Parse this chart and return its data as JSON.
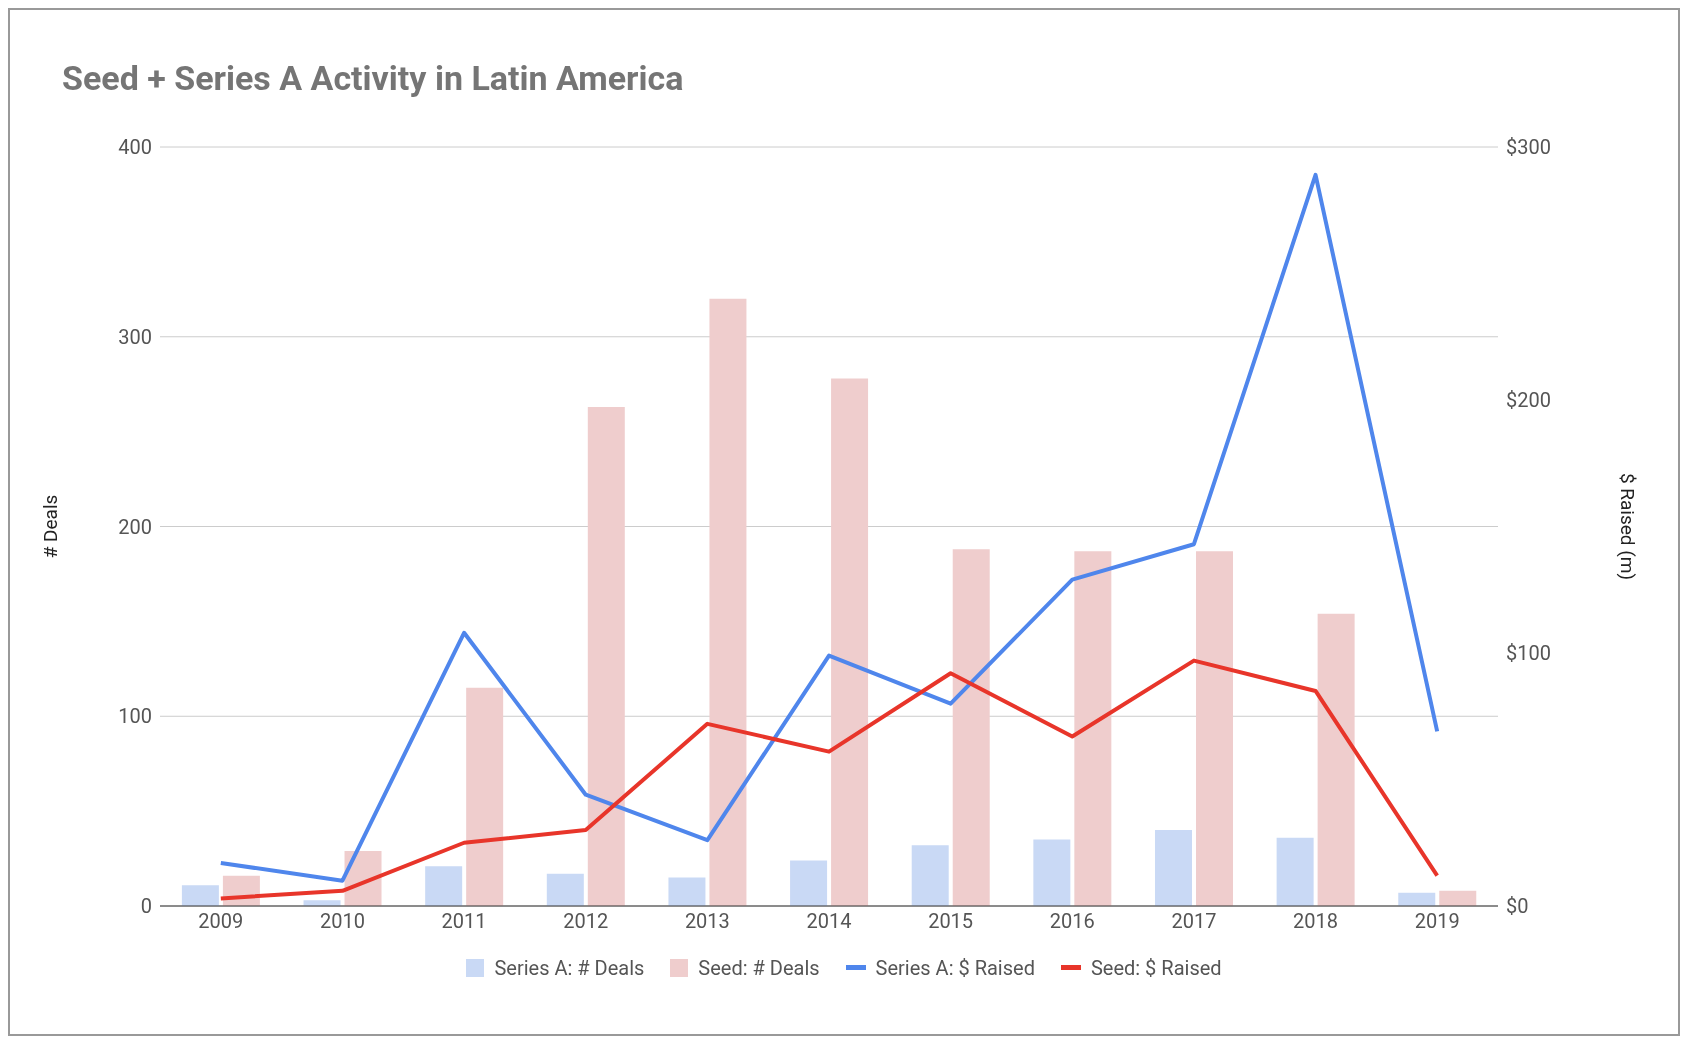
{
  "chart_data": {
    "type": "bar",
    "title": "Seed + Series A Activity in Latin America",
    "ylabel": "# Deals",
    "y2label": "$ Raised (m)",
    "categories": [
      "2009",
      "2010",
      "2011",
      "2012",
      "2013",
      "2014",
      "2015",
      "2016",
      "2017",
      "2018",
      "2019"
    ],
    "series": [
      {
        "name": "Series A: # Deals",
        "color": "#c9d9f5",
        "values": [
          11,
          3,
          21,
          17,
          15,
          24,
          32,
          35,
          40,
          36,
          7
        ]
      },
      {
        "name": "Seed: # Deals",
        "color": "#efcdcd",
        "values": [
          16,
          29,
          115,
          263,
          320,
          278,
          188,
          187,
          187,
          154,
          8
        ]
      },
      {
        "name": "Series A: $ Raised",
        "type": "line",
        "axis": "y2",
        "color": "#4f86ec",
        "values": [
          17,
          10,
          108,
          44,
          26,
          99,
          80,
          129,
          143,
          289,
          69
        ]
      },
      {
        "name": "Seed: $ Raised",
        "type": "line",
        "axis": "y2",
        "color": "#e8352a",
        "values": [
          3,
          6,
          25,
          30,
          72,
          61,
          92,
          67,
          97,
          85,
          12
        ]
      }
    ],
    "ylim": [
      0,
      400
    ],
    "yticks": [
      0,
      100,
      200,
      300,
      400
    ],
    "y2lim": [
      0,
      300
    ],
    "y2ticks": [
      {
        "value": 0,
        "label": "$0"
      },
      {
        "value": 100,
        "label": "$100"
      },
      {
        "value": 200,
        "label": "$200"
      },
      {
        "value": 300,
        "label": "$300"
      }
    ],
    "grid": "y",
    "legend": "bottom",
    "marker": "none",
    "line_style": "solid"
  }
}
